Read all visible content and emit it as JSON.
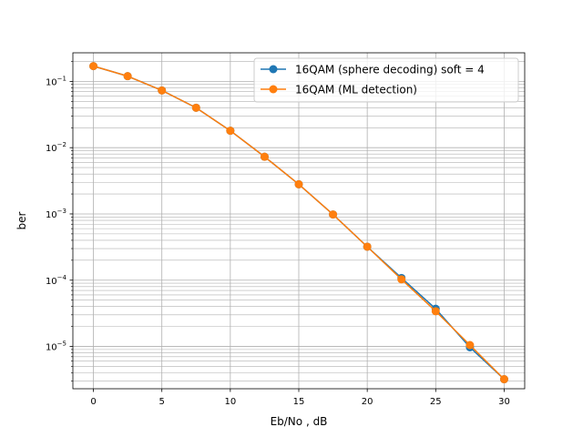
{
  "chart_data": {
    "type": "line",
    "xlabel": "Eb/No , dB",
    "ylabel": "ber",
    "xlim": [
      -1.5,
      31.5
    ],
    "ylim": [
      2.3e-06,
      0.27
    ],
    "yscale": "log",
    "grid": "major and minor",
    "legend_position": "top-right",
    "x_ticks": [
      0,
      5,
      10,
      15,
      20,
      25,
      30
    ],
    "x_tick_labels": [
      "0",
      "5",
      "10",
      "15",
      "20",
      "25",
      "30"
    ],
    "y_ticks": [
      1e-05,
      0.0001,
      0.001,
      0.01,
      0.1
    ],
    "y_tick_labels": [
      {
        "base": "10",
        "exp": "−5"
      },
      {
        "base": "10",
        "exp": "−4"
      },
      {
        "base": "10",
        "exp": "−3"
      },
      {
        "base": "10",
        "exp": "−2"
      },
      {
        "base": "10",
        "exp": "−1"
      }
    ],
    "x": [
      0,
      2.5,
      5,
      7.5,
      10,
      12.5,
      15,
      17.5,
      20,
      22.5,
      25,
      27.5,
      30
    ],
    "series": [
      {
        "name": "16QAM (sphere decoding) soft = 4",
        "color": "#1f77b4",
        "values": [
          0.17,
          0.12,
          0.073,
          0.04,
          0.018,
          0.0073,
          0.0028,
          0.00098,
          0.00032,
          0.000108,
          3.7e-05,
          9.7e-06,
          3.2e-06
        ]
      },
      {
        "name": "16QAM (ML detection)",
        "color": "#ff7f0e",
        "values": [
          0.17,
          0.12,
          0.073,
          0.04,
          0.018,
          0.0073,
          0.0028,
          0.00098,
          0.00032,
          0.000103,
          3.4e-05,
          1.05e-05,
          3.2e-06
        ]
      }
    ]
  }
}
